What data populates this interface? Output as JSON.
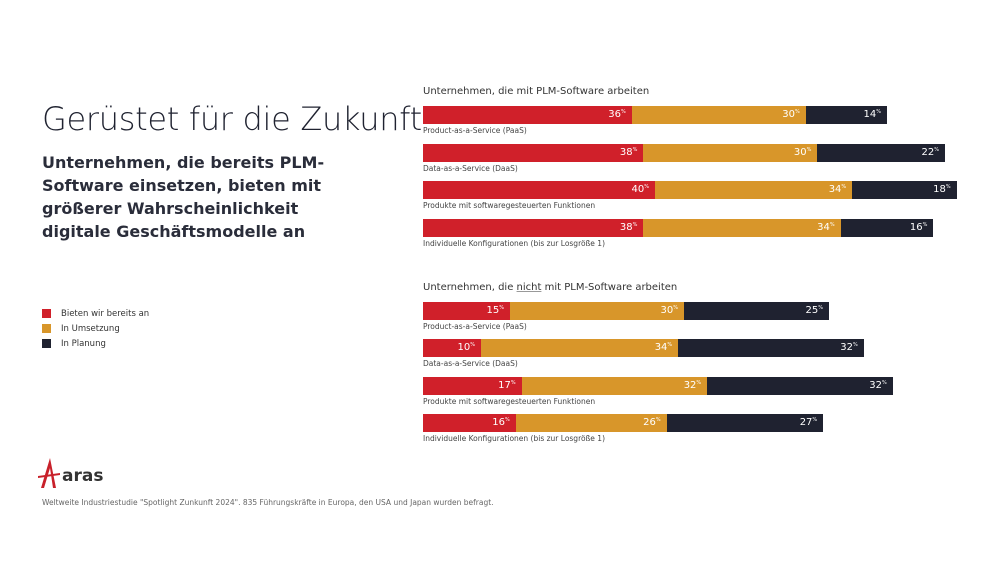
{
  "title": "Gerüstet für die Zukunft",
  "subtitle": "Unternehmen, die bereits PLM-Software einsetzen, bieten mit größerer Wahrscheinlichkeit digitale Geschäftsmodelle an",
  "footnote": "Weltweite Industriestudie \"Spotlight Zunkunft 2024\". 835 Führungskräfte in Europa, den USA und Japan wurden befragt.",
  "logo_text": "aras",
  "colors": {
    "Bieten wir bereits an": "#d0202a",
    "In Umsetzung": "#d8962a",
    "In Planung": "#1f2230"
  },
  "chart_data": [
    {
      "type": "bar",
      "orientation": "horizontal",
      "stacked": true,
      "title_parts": [
        "Unternehmen, die ",
        "mit",
        " PLM-Software arbeiten"
      ],
      "title_underlined": false,
      "unit": "%",
      "categories": [
        "Product-as-a-Service (PaaS)",
        "Data-as-a-Service (DaaS)",
        "Produkte mit softwaregesteuerten Funktionen",
        "Individuelle Konfigurationen (bis zur Losgröße 1)"
      ],
      "series": [
        {
          "name": "Bieten wir bereits an",
          "values": [
            36,
            38,
            40,
            38
          ]
        },
        {
          "name": "In Umsetzung",
          "values": [
            30,
            30,
            34,
            34
          ]
        },
        {
          "name": "In Planung",
          "values": [
            14,
            22,
            18,
            16
          ]
        }
      ],
      "legend": "left"
    },
    {
      "type": "bar",
      "orientation": "horizontal",
      "stacked": true,
      "title_parts": [
        "Unternehmen, die ",
        "nicht",
        " mit PLM-Software arbeiten"
      ],
      "title_underlined": true,
      "unit": "%",
      "categories": [
        "Product-as-a-Service (PaaS)",
        "Data-as-a-Service (DaaS)",
        "Produkte mit softwaregesteuerten Funktionen",
        "Individuelle Konfigurationen (bis zur Losgröße 1)"
      ],
      "series": [
        {
          "name": "Bieten wir bereits an",
          "values": [
            15,
            10,
            17,
            16
          ]
        },
        {
          "name": "In Umsetzung",
          "values": [
            30,
            34,
            32,
            26
          ]
        },
        {
          "name": "In Planung",
          "values": [
            25,
            32,
            32,
            27
          ]
        }
      ],
      "legend": "left"
    }
  ]
}
